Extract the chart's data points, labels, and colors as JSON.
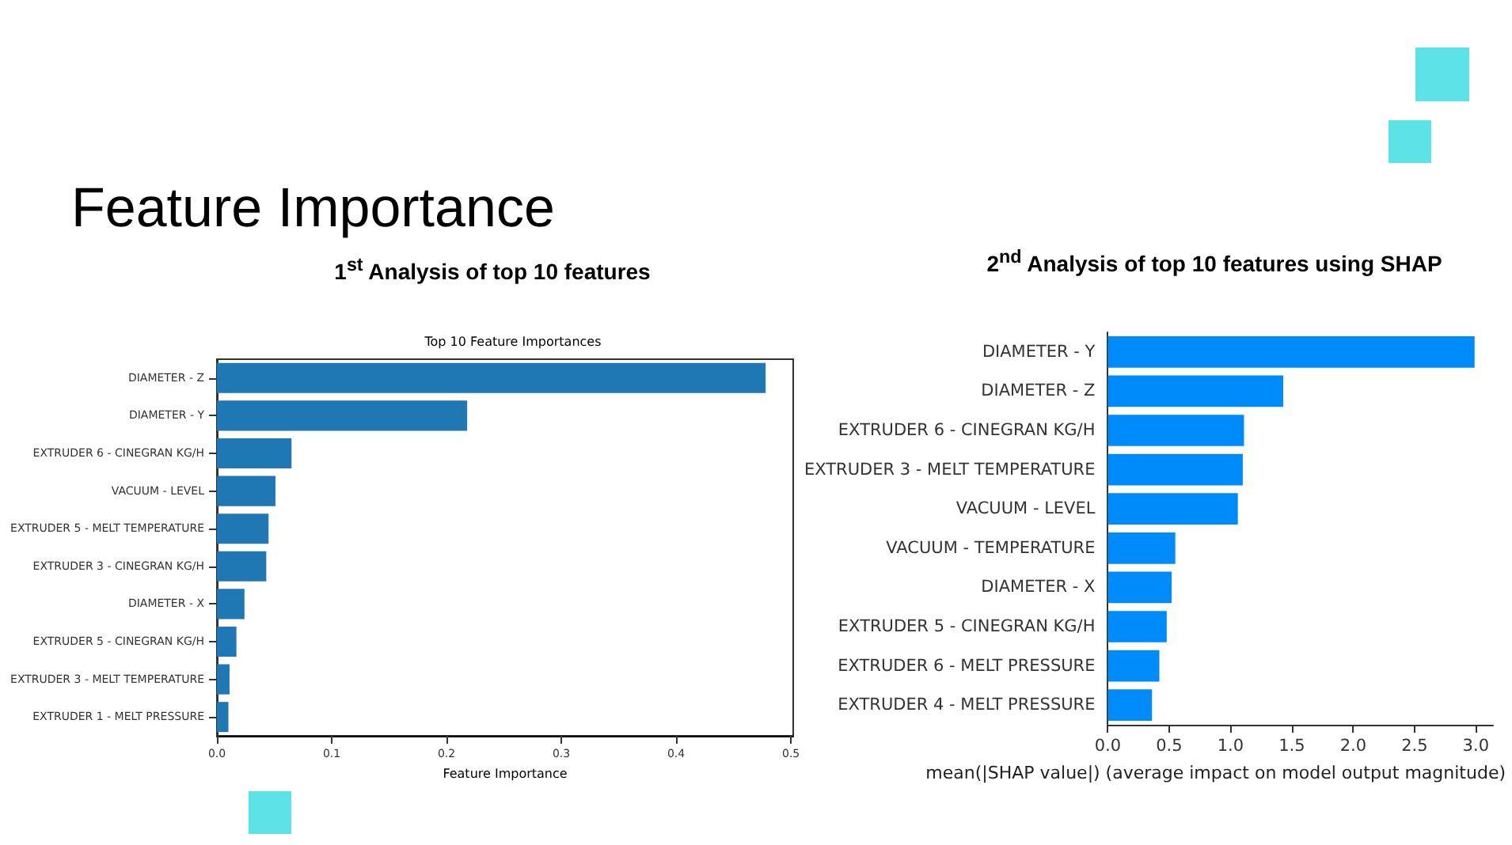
{
  "chart_data": [
    {
      "type": "bar",
      "orientation": "horizontal",
      "title": "1$^{st}$ Analysis of top 10 features",
      "subtitle": "Top 10 Feature Importances",
      "annotations": [
        "Feature Importance"
      ],
      "xlabel": "Feature Importance",
      "categories": [
        "DIAMETER - Z",
        "DIAMETER - Y",
        "EXTRUDER 6 - CINEGRAN KG/H",
        "VACUUM - LEVEL",
        "EXTRUDER 5 - MELT TEMPERATURE",
        "EXTRUDER 3 - CINEGRAN KG/H",
        "DIAMETER - X",
        "EXTRUDER 5 - CINEGRAN KG/H",
        "EXTRUDER 3 - MELT TEMPERATURE",
        "EXTRUDER 1 - MELT PRESSURE"
      ],
      "values": [
        0.478,
        0.218,
        0.065,
        0.051,
        0.045,
        0.043,
        0.024,
        0.017,
        0.011,
        0.01
      ],
      "color": "#1f77b4",
      "xlim": [
        0,
        0.502
      ],
      "xticks": [
        {
          "value": 0,
          "label": "0.0"
        },
        0.1,
        0.2,
        0.3,
        0.4,
        0.5
      ],
      "grid": false
    },
    {
      "type": "bar",
      "orientation": "horizontal",
      "title": "2$^{nd}$ Analysis of top 10 features using SHAP",
      "xlabel": "mean(|SHAP value|) (average impact on model output magnitude)",
      "categories": [
        "DIAMETER - Y",
        "DIAMETER - Z",
        "EXTRUDER 6 - CINEGRAN KG/H",
        "EXTRUDER 3 - MELT TEMPERATURE",
        "VACUUM - LEVEL",
        "VACUUM - TEMPERATURE",
        "DIAMETER - X",
        "EXTRUDER 5 - CINEGRAN KG/H",
        "EXTRUDER 6 - MELT PRESSURE",
        "EXTRUDER 4 - MELT PRESSURE"
      ],
      "values": [
        2.99,
        1.43,
        1.11,
        1.1,
        1.06,
        0.55,
        0.52,
        0.48,
        0.42,
        0.36
      ],
      "color": "#008bfb",
      "xlim": [
        0,
        3.14
      ],
      "xticks": [
        {
          "value": 0,
          "label": "0.0"
        },
        0.5,
        {
          "value": 1,
          "label": "1.0"
        },
        1.5,
        {
          "value": 2,
          "label": "2.0"
        },
        2.5,
        {
          "value": 3,
          "label": "3.0"
        }
      ],
      "grid": false
    }
  ]
}
